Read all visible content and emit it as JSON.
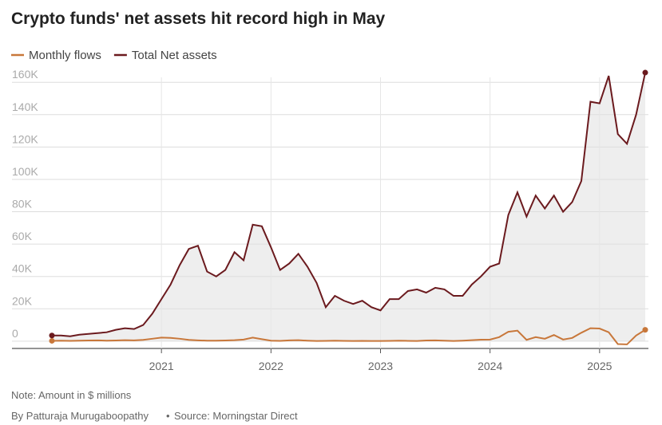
{
  "chart_data": {
    "type": "line",
    "title": "Crypto funds' net assets hit record high in May",
    "note": "Note: Amount in $ millions",
    "byline": "By Patturaja Murugaboopathy",
    "source": "Source: Morningstar Direct",
    "categories": [
      null,
      null,
      null,
      null,
      null,
      null,
      null,
      null,
      null,
      null,
      null,
      null,
      "2021",
      null,
      null,
      null,
      null,
      null,
      null,
      null,
      null,
      null,
      null,
      null,
      "2022",
      null,
      null,
      null,
      null,
      null,
      null,
      null,
      null,
      null,
      null,
      null,
      "2023",
      null,
      null,
      null,
      null,
      null,
      null,
      null,
      null,
      null,
      null,
      null,
      "2024",
      null,
      null,
      null,
      null,
      null,
      null,
      null,
      null,
      null,
      null,
      null,
      "2025",
      null,
      null,
      null,
      null,
      null
    ],
    "series": [
      {
        "name": "Monthly flows",
        "color": "#c8773a",
        "values": [
          200,
          300,
          200,
          300,
          400,
          500,
          300,
          400,
          600,
          500,
          800,
          1500,
          2200,
          2000,
          1500,
          800,
          500,
          300,
          300,
          400,
          600,
          1000,
          2200,
          1200,
          300,
          200,
          500,
          600,
          300,
          100,
          200,
          300,
          200,
          100,
          200,
          100,
          100,
          200,
          300,
          200,
          100,
          400,
          500,
          300,
          100,
          300,
          600,
          900,
          1000,
          2500,
          5800,
          6500,
          800,
          2500,
          1500,
          3800,
          1000,
          2000,
          5200,
          8000,
          7800,
          5500,
          -1800,
          -2000,
          3500,
          7000
        ]
      },
      {
        "name": "Total Net assets",
        "color": "#6b1a1e",
        "values": [
          3500,
          3500,
          3000,
          4000,
          4500,
          5000,
          5500,
          7000,
          8000,
          7500,
          10000,
          17000,
          26000,
          35000,
          47000,
          57000,
          59000,
          43000,
          40000,
          44000,
          55000,
          50000,
          72000,
          71000,
          58000,
          44000,
          48000,
          54000,
          46000,
          36000,
          21000,
          28000,
          25000,
          23000,
          25000,
          21000,
          19000,
          26000,
          26000,
          31000,
          32000,
          30000,
          33000,
          32000,
          28000,
          28000,
          35000,
          40000,
          46000,
          48000,
          78000,
          92000,
          77000,
          90000,
          82000,
          90000,
          80000,
          86000,
          99000,
          148000,
          147000,
          164000,
          128000,
          122000,
          140000,
          166000
        ]
      }
    ],
    "area_fill": "#eeeeee",
    "ylim": [
      -5000,
      168000
    ],
    "yticks": [
      0,
      {
        "value": 20000,
        "label": "20K"
      },
      {
        "value": 40000,
        "label": "40K"
      },
      {
        "value": 60000,
        "label": "60K"
      },
      {
        "value": 80000,
        "label": "80K"
      },
      {
        "value": 100000,
        "label": "100K"
      },
      {
        "value": 120000,
        "label": "120K"
      },
      {
        "value": 140000,
        "label": "140K"
      },
      {
        "value": 160000,
        "label": "160K"
      }
    ],
    "grid": true
  }
}
